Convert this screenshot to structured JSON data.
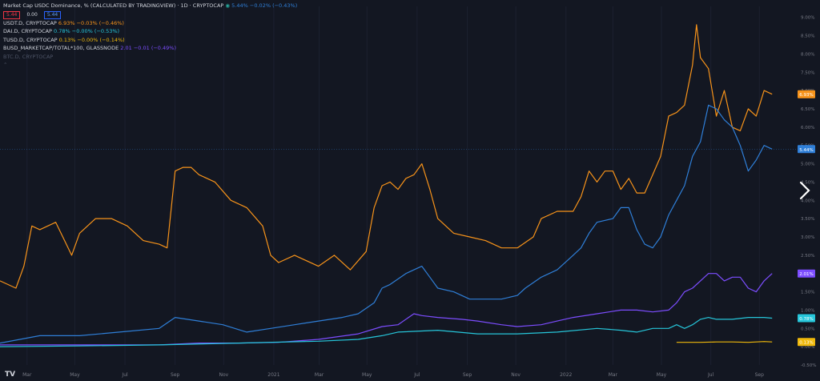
{
  "header": {
    "title": "Market Cap USDC Dominance, % (CALCULATED BY TRADINGVIEW) · 1D · CRYPTOCAP",
    "value": "5.44%",
    "change": "−0.02% (−0.43%)",
    "pill_sell": "5.44",
    "pill_spread": "0.00",
    "pill_buy": "5.44"
  },
  "legend_rows": [
    {
      "name": "USDT.D, CRYPTOCAP",
      "value": "6.93%",
      "change": "−0.03% (−0.46%)",
      "color": "#f7931a"
    },
    {
      "name": "DAI.D, CRYPTOCAP",
      "value": "0.78%",
      "change": "−0.00% (−0.53%)",
      "color": "#26c6da"
    },
    {
      "name": "TUSD.D, CRYPTOCAP",
      "value": "0.13%",
      "change": "−0.00% (−0.14%)",
      "color": "#f0b90b"
    },
    {
      "name": "BUSD_MARKETCAP/TOTAL*100, GLASSNODE",
      "value": "2.01",
      "change": "−0.01 (−0.49%)",
      "color": "#7c4dff"
    },
    {
      "name": "BTC.D, CRYPTOCAP",
      "value": "",
      "change": "",
      "color": "#4d5466"
    }
  ],
  "chart_data": {
    "type": "line",
    "title": "Market Cap USDC Dominance, % (CALCULATED BY TRADINGVIEW) · 1D · CRYPTOCAP",
    "xlabel": "",
    "ylabel": "%",
    "x_range": [
      0,
      100
    ],
    "ylim": [
      -0.5,
      9.3
    ],
    "x_ticks": [
      {
        "x": 3.4,
        "label": "Mar"
      },
      {
        "x": 9.4,
        "label": "May"
      },
      {
        "x": 15.7,
        "label": "Jul"
      },
      {
        "x": 22.0,
        "label": "Sep"
      },
      {
        "x": 28.1,
        "label": "Nov"
      },
      {
        "x": 34.4,
        "label": "2021"
      },
      {
        "x": 40.1,
        "label": "Mar"
      },
      {
        "x": 46.1,
        "label": "May"
      },
      {
        "x": 52.4,
        "label": "Jul"
      },
      {
        "x": 58.7,
        "label": "Sep"
      },
      {
        "x": 64.8,
        "label": "Nov"
      },
      {
        "x": 71.1,
        "label": "2022"
      },
      {
        "x": 77.0,
        "label": "Mar"
      },
      {
        "x": 83.1,
        "label": "May"
      },
      {
        "x": 89.3,
        "label": "Jul"
      },
      {
        "x": 95.4,
        "label": "Sep"
      }
    ],
    "y_ticks": [
      "-0.50%",
      "0.00%",
      "0.50%",
      "1.00%",
      "1.50%",
      "2.00%",
      "2.50%",
      "3.00%",
      "3.50%",
      "4.00%",
      "4.50%",
      "5.00%",
      "5.50%",
      "6.00%",
      "6.50%",
      "7.00%",
      "7.50%",
      "8.00%",
      "8.50%",
      "9.00%"
    ],
    "y_tick_values": [
      -0.5,
      0,
      0.5,
      1,
      1.5,
      2,
      2.5,
      3,
      3.5,
      4,
      4.5,
      5,
      5.5,
      6,
      6.5,
      7,
      7.5,
      8,
      8.5,
      9
    ],
    "series": [
      {
        "name": "USDT.D",
        "color": "#f7931a",
        "last_label": "6.93%",
        "x": [
          0,
          2,
          3,
          4,
          5,
          7,
          9,
          10,
          12,
          14,
          16,
          18,
          20,
          21,
          22,
          23,
          24,
          25,
          27,
          29,
          31,
          33,
          34,
          35,
          37,
          40,
          42,
          44,
          46,
          47,
          48,
          49,
          50,
          51,
          52,
          53,
          54,
          55,
          57,
          59,
          61,
          63,
          65,
          67,
          68,
          70,
          72,
          73,
          74,
          75,
          76,
          77,
          78,
          79,
          80,
          81,
          82,
          83,
          84,
          85,
          86,
          87,
          87.5,
          88,
          89,
          90,
          91,
          92,
          93,
          94,
          95,
          96,
          97
        ],
        "y": [
          1.8,
          1.6,
          2.2,
          3.3,
          3.2,
          3.4,
          2.5,
          3.1,
          3.5,
          3.5,
          3.3,
          2.9,
          2.8,
          2.7,
          4.8,
          4.9,
          4.9,
          4.7,
          4.5,
          4.0,
          3.8,
          3.3,
          2.5,
          2.3,
          2.5,
          2.2,
          2.5,
          2.1,
          2.6,
          3.8,
          4.4,
          4.5,
          4.3,
          4.6,
          4.7,
          5.0,
          4.3,
          3.5,
          3.1,
          3.0,
          2.9,
          2.7,
          2.7,
          3.0,
          3.5,
          3.7,
          3.7,
          4.1,
          4.8,
          4.5,
          4.8,
          4.8,
          4.3,
          4.6,
          4.2,
          4.2,
          4.7,
          5.2,
          6.3,
          6.4,
          6.6,
          7.7,
          8.8,
          7.9,
          7.6,
          6.3,
          7.0,
          6.0,
          5.9,
          6.5,
          6.3,
          7.0,
          6.9
        ]
      },
      {
        "name": "USDC.D",
        "color": "#2f7fd8",
        "last_label": "5.44%",
        "x": [
          0,
          5,
          10,
          15,
          20,
          22,
          25,
          28,
          31,
          34,
          37,
          40,
          43,
          45,
          47,
          48,
          49,
          51,
          52,
          53,
          54,
          55,
          57,
          59,
          61,
          63,
          65,
          66,
          68,
          70,
          72,
          73,
          74,
          75,
          77,
          78,
          79,
          80,
          81,
          82,
          83,
          84,
          85,
          86,
          87,
          88,
          89,
          90,
          91,
          92,
          93,
          94,
          95,
          96,
          97
        ],
        "y": [
          0.1,
          0.3,
          0.3,
          0.4,
          0.5,
          0.8,
          0.7,
          0.6,
          0.4,
          0.5,
          0.6,
          0.7,
          0.8,
          0.9,
          1.2,
          1.6,
          1.7,
          2.0,
          2.1,
          2.2,
          1.9,
          1.6,
          1.5,
          1.3,
          1.3,
          1.3,
          1.4,
          1.6,
          1.9,
          2.1,
          2.5,
          2.7,
          3.1,
          3.4,
          3.5,
          3.8,
          3.8,
          3.2,
          2.8,
          2.7,
          3.0,
          3.6,
          4.0,
          4.4,
          5.2,
          5.6,
          6.6,
          6.5,
          6.2,
          6.0,
          5.5,
          4.8,
          5.1,
          5.5,
          5.4
        ]
      },
      {
        "name": "BUSD",
        "color": "#7c4dff",
        "last_label": "2.01%",
        "x": [
          0,
          10,
          20,
          25,
          30,
          35,
          40,
          45,
          48,
          50,
          52,
          53,
          55,
          58,
          60,
          63,
          65,
          68,
          70,
          72,
          75,
          78,
          80,
          82,
          84,
          85,
          86,
          87,
          88,
          89,
          90,
          91,
          92,
          93,
          94,
          95,
          96,
          97
        ],
        "y": [
          0.05,
          0.05,
          0.05,
          0.1,
          0.1,
          0.12,
          0.2,
          0.35,
          0.55,
          0.6,
          0.9,
          0.85,
          0.8,
          0.75,
          0.7,
          0.6,
          0.55,
          0.6,
          0.7,
          0.8,
          0.9,
          1.0,
          1.0,
          0.95,
          1.0,
          1.2,
          1.5,
          1.6,
          1.8,
          2.0,
          2.0,
          1.8,
          1.9,
          1.9,
          1.6,
          1.5,
          1.8,
          2.0
        ]
      },
      {
        "name": "DAI.D",
        "color": "#26c6da",
        "last_label": "0.78%",
        "x": [
          0,
          10,
          20,
          30,
          40,
          45,
          48,
          50,
          55,
          60,
          65,
          70,
          75,
          78,
          80,
          82,
          84,
          85,
          86,
          87,
          88,
          89,
          90,
          92,
          94,
          96,
          97
        ],
        "y": [
          0.0,
          0.02,
          0.05,
          0.1,
          0.15,
          0.2,
          0.3,
          0.4,
          0.45,
          0.35,
          0.35,
          0.4,
          0.5,
          0.45,
          0.4,
          0.5,
          0.5,
          0.6,
          0.5,
          0.6,
          0.75,
          0.8,
          0.75,
          0.75,
          0.8,
          0.8,
          0.78
        ]
      },
      {
        "name": "TUSD.D",
        "color": "#f0b90b",
        "last_label": "0.13%",
        "x": [
          85,
          88,
          90,
          92,
          94,
          96,
          97
        ],
        "y": [
          0.12,
          0.12,
          0.13,
          0.13,
          0.12,
          0.14,
          0.13
        ]
      }
    ]
  }
}
